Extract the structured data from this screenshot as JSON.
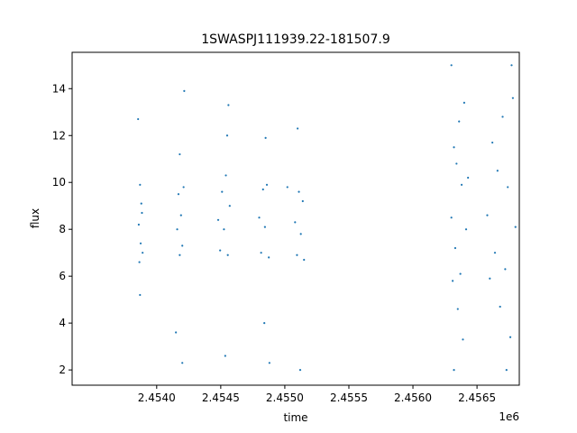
{
  "chart_data": {
    "type": "scatter",
    "title": "1SWASPJ111939.22-181507.9",
    "xlabel": "time",
    "ylabel": "flux",
    "x_offset_label": "1e6",
    "xlim": [
      2453340,
      2456830
    ],
    "ylim": [
      1.35,
      15.55
    ],
    "xticks": [
      2.454,
      2.4545,
      2.455,
      2.4555,
      2.456,
      2.4565
    ],
    "xtick_labels": [
      "2.4540",
      "2.4545",
      "2.4550",
      "2.4555",
      "2.4560",
      "2.4565"
    ],
    "yticks": [
      2,
      4,
      6,
      8,
      10,
      12,
      14
    ],
    "ytick_labels": [
      "2",
      "4",
      "6",
      "8",
      "10",
      "12",
      "14"
    ],
    "grid": false,
    "legend": "none",
    "marker_color": "#1f77b4",
    "series": [
      {
        "values": [
          {
            "x": 2453860,
            "y": 8.2
          },
          {
            "x": 2453865,
            "y": 6.6
          },
          {
            "x": 2453870,
            "y": 9.9
          },
          {
            "x": 2453875,
            "y": 7.4
          },
          {
            "x": 2453880,
            "y": 9.1
          },
          {
            "x": 2453885,
            "y": 8.7
          },
          {
            "x": 2453890,
            "y": 7.0
          },
          {
            "x": 2453855,
            "y": 12.7
          },
          {
            "x": 2453870,
            "y": 5.2
          },
          {
            "x": 2454160,
            "y": 8.0
          },
          {
            "x": 2454170,
            "y": 9.5
          },
          {
            "x": 2454180,
            "y": 6.9
          },
          {
            "x": 2454190,
            "y": 8.6
          },
          {
            "x": 2454200,
            "y": 7.3
          },
          {
            "x": 2454210,
            "y": 9.8
          },
          {
            "x": 2454180,
            "y": 11.2
          },
          {
            "x": 2454150,
            "y": 3.6
          },
          {
            "x": 2454215,
            "y": 13.9
          },
          {
            "x": 2454200,
            "y": 2.3
          },
          {
            "x": 2454480,
            "y": 8.4
          },
          {
            "x": 2454495,
            "y": 7.1
          },
          {
            "x": 2454510,
            "y": 9.6
          },
          {
            "x": 2454525,
            "y": 8.0
          },
          {
            "x": 2454540,
            "y": 10.3
          },
          {
            "x": 2454555,
            "y": 6.9
          },
          {
            "x": 2454570,
            "y": 9.0
          },
          {
            "x": 2454560,
            "y": 13.3
          },
          {
            "x": 2454550,
            "y": 12.0
          },
          {
            "x": 2454535,
            "y": 2.6
          },
          {
            "x": 2454800,
            "y": 8.5
          },
          {
            "x": 2454815,
            "y": 7.0
          },
          {
            "x": 2454830,
            "y": 9.7
          },
          {
            "x": 2454845,
            "y": 8.1
          },
          {
            "x": 2454860,
            "y": 9.9
          },
          {
            "x": 2454875,
            "y": 6.8
          },
          {
            "x": 2454850,
            "y": 11.9
          },
          {
            "x": 2454880,
            "y": 2.3
          },
          {
            "x": 2454840,
            "y": 4.0
          },
          {
            "x": 2455080,
            "y": 8.3
          },
          {
            "x": 2455095,
            "y": 6.9
          },
          {
            "x": 2455110,
            "y": 9.6
          },
          {
            "x": 2455125,
            "y": 7.8
          },
          {
            "x": 2455140,
            "y": 9.2
          },
          {
            "x": 2455150,
            "y": 6.7
          },
          {
            "x": 2455020,
            "y": 9.8
          },
          {
            "x": 2455100,
            "y": 12.3
          },
          {
            "x": 2455120,
            "y": 2.0
          },
          {
            "x": 2456300,
            "y": 8.5
          },
          {
            "x": 2456310,
            "y": 5.8
          },
          {
            "x": 2456320,
            "y": 11.5
          },
          {
            "x": 2456330,
            "y": 7.2
          },
          {
            "x": 2456340,
            "y": 10.8
          },
          {
            "x": 2456350,
            "y": 4.6
          },
          {
            "x": 2456360,
            "y": 12.6
          },
          {
            "x": 2456370,
            "y": 6.1
          },
          {
            "x": 2456380,
            "y": 9.9
          },
          {
            "x": 2456390,
            "y": 3.3
          },
          {
            "x": 2456400,
            "y": 13.4
          },
          {
            "x": 2456415,
            "y": 8.0
          },
          {
            "x": 2456430,
            "y": 10.2
          },
          {
            "x": 2456300,
            "y": 15.0
          },
          {
            "x": 2456320,
            "y": 2.0
          },
          {
            "x": 2456580,
            "y": 8.6
          },
          {
            "x": 2456600,
            "y": 5.9
          },
          {
            "x": 2456620,
            "y": 11.7
          },
          {
            "x": 2456640,
            "y": 7.0
          },
          {
            "x": 2456660,
            "y": 10.5
          },
          {
            "x": 2456680,
            "y": 4.7
          },
          {
            "x": 2456700,
            "y": 12.8
          },
          {
            "x": 2456720,
            "y": 6.3
          },
          {
            "x": 2456740,
            "y": 9.8
          },
          {
            "x": 2456760,
            "y": 3.4
          },
          {
            "x": 2456780,
            "y": 13.6
          },
          {
            "x": 2456800,
            "y": 8.1
          },
          {
            "x": 2456770,
            "y": 15.0
          },
          {
            "x": 2456730,
            "y": 2.0
          }
        ]
      }
    ]
  }
}
